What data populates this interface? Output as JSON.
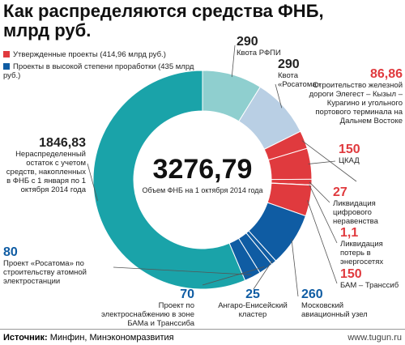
{
  "header": {
    "title": "Как распределяются средства ФНБ, млрд руб."
  },
  "chart_data": {
    "type": "donut",
    "center_value": {
      "value": 3276.79,
      "label": "3276,79"
    },
    "center_label": "Объем ФНБ на 1 октября 2014 года",
    "legend": [
      {
        "name": "Утвержденные проекты (414,96 млрд руб.)",
        "color": "#e03a3e"
      },
      {
        "name": "Проекты в высокой степени проработки (435 млрд руб.)",
        "color": "#0f5ca3"
      }
    ],
    "categories": [
      "Квота РФПИ",
      "Квота «Росатома»",
      "Строительство железной дороги Элегест – Кызыл – Курагино и угольного портового терминала на Дальнем Востоке",
      "ЦКАД",
      "Ликвидация цифрового неравенства",
      "Ликвидация потерь в энергосетях",
      "БАМ – Транссиб",
      "Московский авиационный узел",
      "Ангаро-Енисейский кластер",
      "Проект по электроснабжению в зоне БАМа и Транссиба",
      "Проект «Росатома» по строительству атомной электростанции",
      "Нераспределенный остаток с учетом средств, накопленных в ФНБ с 1 января по 1 октября 2014 года"
    ],
    "values": [
      290,
      290,
      86.86,
      150,
      27,
      1.1,
      150,
      260,
      25,
      70,
      80,
      1846.83
    ],
    "value_labels": [
      "290",
      "290",
      "86,86",
      "150",
      "27",
      "1,1",
      "150",
      "260",
      "25",
      "70",
      "80",
      "1846,83"
    ],
    "colors": [
      "#8fcfcf",
      "#b9cfe4",
      "#e03a3e",
      "#e03a3e",
      "#e03a3e",
      "#e03a3e",
      "#e03a3e",
      "#0f5ca3",
      "#0f5ca3",
      "#0f5ca3",
      "#0f5ca3",
      "#1aa3a9"
    ]
  },
  "footer": {
    "source_label": "Источник:",
    "source": "Минфин, Минэкономразвития",
    "site": "www.tugun.ru"
  }
}
